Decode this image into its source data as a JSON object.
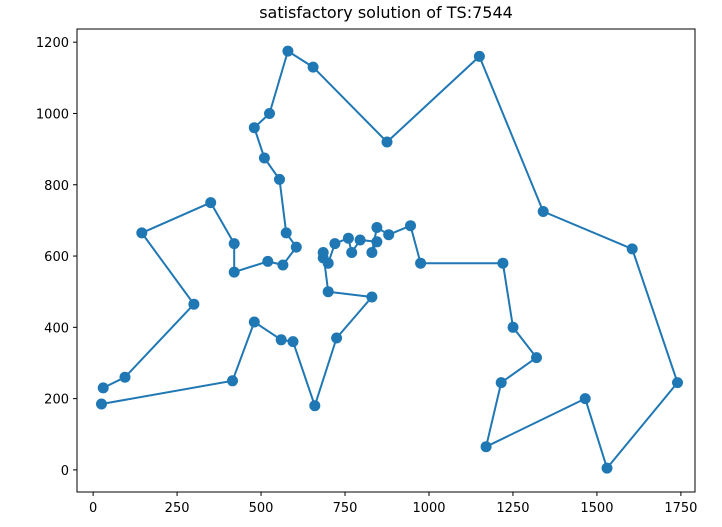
{
  "chart_data": {
    "type": "line",
    "title": "satisfactory solution of TS:7544",
    "xlabel": "",
    "ylabel": "",
    "xlim": [
      -48,
      1792
    ],
    "ylim": [
      -62,
      1237
    ],
    "xticks": [
      0,
      250,
      500,
      750,
      1000,
      1250,
      1500,
      1750
    ],
    "yticks": [
      0,
      200,
      400,
      600,
      800,
      1000,
      1200
    ],
    "grid": false,
    "series": [
      {
        "name": "",
        "color": "#1f77b4",
        "marker": "circle",
        "x": [
          30,
          95,
          300,
          145,
          350,
          420,
          420,
          520,
          565,
          605,
          575,
          555,
          510,
          480,
          525,
          580,
          655,
          875,
          1150,
          1340,
          1605,
          1740,
          1530,
          1465,
          1170,
          1215,
          1320,
          1250,
          1220,
          975,
          945,
          880,
          845,
          830,
          845,
          795,
          770,
          760,
          720,
          700,
          685,
          685,
          700,
          830,
          725,
          660,
          595,
          560,
          480,
          415,
          25
        ],
        "y": [
          230,
          260,
          465,
          665,
          750,
          635,
          555,
          585,
          575,
          625,
          665,
          815,
          875,
          960,
          1000,
          1175,
          1130,
          920,
          1160,
          725,
          620,
          245,
          5,
          200,
          65,
          245,
          315,
          400,
          580,
          580,
          685,
          660,
          680,
          610,
          640,
          645,
          610,
          650,
          635,
          580,
          595,
          610,
          500,
          485,
          370,
          180,
          360,
          365,
          415,
          250,
          185
        ]
      }
    ]
  }
}
